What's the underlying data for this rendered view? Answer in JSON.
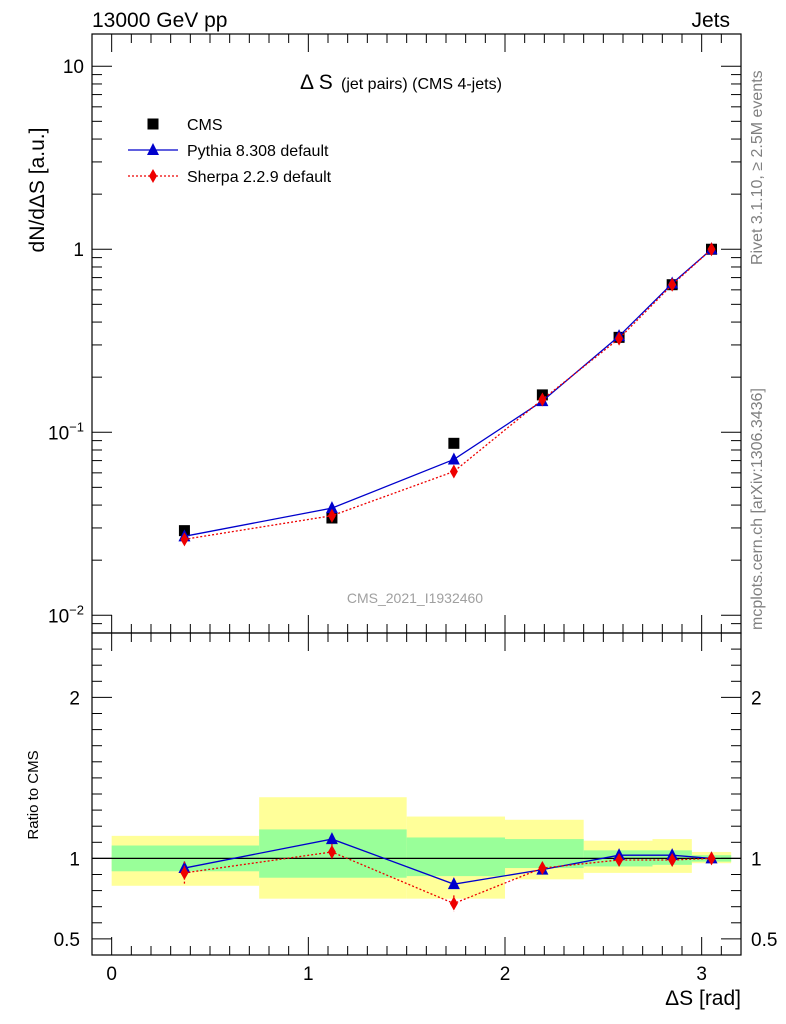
{
  "header": {
    "left": "13000 GeV pp",
    "right": "Jets"
  },
  "side_labels": {
    "rivet": "Rivet 3.1.10, ≥ 2.5M events",
    "mcplots": "mcplots.cern.ch [arXiv:1306.3436]"
  },
  "watermark": "CMS_2021_I1932460",
  "chart_data": [
    {
      "type": "scatter",
      "panel": "main",
      "title_main": "Δ S",
      "title_sub": "(jet pairs) (CMS 4-jets)",
      "xlabel": "",
      "ylabel": "dN/dΔS [a.u.]",
      "yscale": "log",
      "xlim": [
        -0.1,
        3.2
      ],
      "ylim": [
        0.008,
        15
      ],
      "y_ticks": [
        {
          "v": 0.01,
          "base": "10",
          "exp": "−2"
        },
        {
          "v": 0.1,
          "base": "10",
          "exp": "−1"
        },
        {
          "v": 1,
          "base": "1",
          "exp": ""
        },
        {
          "v": 10,
          "base": "10",
          "exp": ""
        }
      ],
      "legend_position": "top-left",
      "x": [
        0.37,
        1.12,
        1.74,
        2.19,
        2.58,
        2.85,
        3.05
      ],
      "series": [
        {
          "name": "CMS",
          "marker": "square",
          "color": "#000000",
          "line": "none",
          "values": [
            0.029,
            0.034,
            0.087,
            0.16,
            0.33,
            0.64,
            1.0
          ]
        },
        {
          "name": "Pythia 8.308 default",
          "marker": "triangle",
          "color": "#0000cc",
          "line": "solid",
          "values": [
            0.027,
            0.0385,
            0.071,
            0.148,
            0.335,
            0.65,
            1.0
          ]
        },
        {
          "name": "Sherpa 2.2.9 default",
          "marker": "diamond",
          "color": "#ee0000",
          "line": "dotted",
          "values": [
            0.026,
            0.035,
            0.061,
            0.151,
            0.325,
            0.64,
            1.0
          ]
        }
      ]
    },
    {
      "type": "scatter",
      "panel": "ratio",
      "xlabel": "ΔS [rad]",
      "ylabel": "Ratio to CMS",
      "xlim": [
        -0.1,
        3.2
      ],
      "ylim": [
        0.4,
        2.4
      ],
      "x_ticks": [
        {
          "v": 0,
          "label": "0"
        },
        {
          "v": 1,
          "label": "1"
        },
        {
          "v": 2,
          "label": "2"
        },
        {
          "v": 3,
          "label": "3"
        }
      ],
      "y_ticks": [
        {
          "v": 0.5,
          "label": "0.5"
        },
        {
          "v": 1,
          "label": "1"
        },
        {
          "v": 2,
          "label": "2"
        }
      ],
      "bands": [
        {
          "x0": 0.0,
          "x1": 0.75,
          "yellow": [
            0.83,
            1.14
          ],
          "green": [
            0.92,
            1.08
          ]
        },
        {
          "x0": 0.75,
          "x1": 1.5,
          "yellow": [
            0.75,
            1.38
          ],
          "green": [
            0.88,
            1.18
          ]
        },
        {
          "x0": 1.5,
          "x1": 2.0,
          "yellow": [
            0.75,
            1.26
          ],
          "green": [
            0.89,
            1.13
          ]
        },
        {
          "x0": 2.0,
          "x1": 2.4,
          "yellow": [
            0.87,
            1.24
          ],
          "green": [
            0.94,
            1.12
          ]
        },
        {
          "x0": 2.4,
          "x1": 2.75,
          "yellow": [
            0.91,
            1.11
          ],
          "green": [
            0.95,
            1.05
          ]
        },
        {
          "x0": 2.75,
          "x1": 2.95,
          "yellow": [
            0.91,
            1.12
          ],
          "green": [
            0.96,
            1.05
          ]
        },
        {
          "x0": 2.95,
          "x1": 3.15,
          "yellow": [
            0.97,
            1.04
          ],
          "green": [
            0.98,
            1.02
          ]
        }
      ],
      "x": [
        0.37,
        1.12,
        1.74,
        2.19,
        2.58,
        2.85,
        3.05
      ],
      "series": [
        {
          "name": "Pythia 8.308 default",
          "marker": "triangle",
          "color": "#0000cc",
          "line": "solid",
          "values": [
            0.94,
            1.12,
            0.84,
            0.93,
            1.02,
            1.02,
            1.0
          ],
          "err": [
            0.04,
            0.03,
            0.03,
            0.01,
            0.01,
            0.01,
            0.01
          ]
        },
        {
          "name": "Sherpa 2.2.9 default",
          "marker": "diamond",
          "color": "#ee0000",
          "line": "dotted",
          "values": [
            0.91,
            1.04,
            0.72,
            0.94,
            0.99,
            0.99,
            1.0
          ],
          "err": [
            0.07,
            0.05,
            0.05,
            0.02,
            0.02,
            0.02,
            0.01
          ]
        }
      ]
    }
  ]
}
